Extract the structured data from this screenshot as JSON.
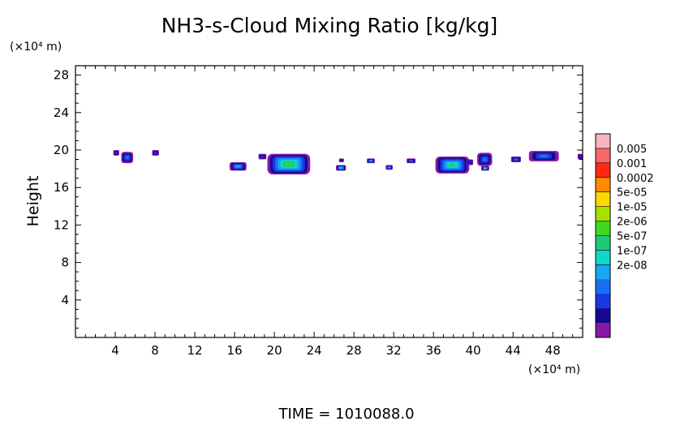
{
  "chart_data": {
    "type": "heatmap",
    "title": "NH3-s-Cloud Mixing Ratio [kg/kg]",
    "ylabel": "Height",
    "y_unit": "(×10⁴ m)",
    "x_unit": "(×10⁴ m)",
    "footer": "TIME = 1010088.0",
    "xlim": [
      0,
      51
    ],
    "ylim": [
      0,
      29
    ],
    "x_ticks": [
      4,
      8,
      12,
      16,
      20,
      24,
      28,
      32,
      36,
      40,
      44,
      48
    ],
    "y_ticks": [
      4,
      8,
      12,
      16,
      20,
      24,
      28
    ],
    "colorbar": {
      "labels": [
        "0.005",
        "0.001",
        "0.0002",
        "5e-05",
        "1e-05",
        "2e-06",
        "5e-07",
        "1e-07",
        "2e-08"
      ],
      "colors": [
        "#f8b4c0",
        "#f86868",
        "#ff2a10",
        "#ff8c00",
        "#ffd700",
        "#a8e000",
        "#40d820",
        "#20c87a",
        "#10d8c8",
        "#18a8f0",
        "#1870f0",
        "#1838e0",
        "#180890",
        "#8818a8"
      ]
    },
    "cloud_patches": [
      {
        "x0": 3.8,
        "x1": 4.4,
        "y0": 19.4,
        "y1": 20.0,
        "level": 2
      },
      {
        "x0": 4.6,
        "x1": 5.8,
        "y0": 18.6,
        "y1": 19.8,
        "level": 3
      },
      {
        "x0": 7.7,
        "x1": 8.4,
        "y0": 19.4,
        "y1": 20.0,
        "level": 2
      },
      {
        "x0": 15.5,
        "x1": 17.2,
        "y0": 17.8,
        "y1": 18.7,
        "level": 4
      },
      {
        "x0": 18.4,
        "x1": 19.2,
        "y0": 19.0,
        "y1": 19.6,
        "level": 2
      },
      {
        "x0": 19.3,
        "x1": 23.6,
        "y0": 17.4,
        "y1": 19.6,
        "level": 7
      },
      {
        "x0": 26.2,
        "x1": 27.2,
        "y0": 17.8,
        "y1": 18.4,
        "level": 5
      },
      {
        "x0": 26.5,
        "x1": 27.0,
        "y0": 18.7,
        "y1": 19.1,
        "level": 1
      },
      {
        "x0": 29.3,
        "x1": 30.1,
        "y0": 18.6,
        "y1": 19.1,
        "level": 4
      },
      {
        "x0": 31.2,
        "x1": 31.9,
        "y0": 17.9,
        "y1": 18.4,
        "level": 4
      },
      {
        "x0": 33.3,
        "x1": 34.2,
        "y0": 18.6,
        "y1": 19.1,
        "level": 3
      },
      {
        "x0": 36.2,
        "x1": 39.6,
        "y0": 17.5,
        "y1": 19.3,
        "level": 6
      },
      {
        "x0": 39.3,
        "x1": 40.0,
        "y0": 18.4,
        "y1": 19.0,
        "level": 2
      },
      {
        "x0": 40.4,
        "x1": 41.9,
        "y0": 18.3,
        "y1": 19.7,
        "level": 3
      },
      {
        "x0": 40.8,
        "x1": 41.6,
        "y0": 17.8,
        "y1": 18.3,
        "level": 5
      },
      {
        "x0": 43.8,
        "x1": 44.8,
        "y0": 18.7,
        "y1": 19.3,
        "level": 3
      },
      {
        "x0": 45.6,
        "x1": 48.6,
        "y0": 18.8,
        "y1": 19.9,
        "level": 3
      },
      {
        "x0": 50.5,
        "x1": 51.0,
        "y0": 19.0,
        "y1": 19.6,
        "level": 2
      }
    ]
  }
}
